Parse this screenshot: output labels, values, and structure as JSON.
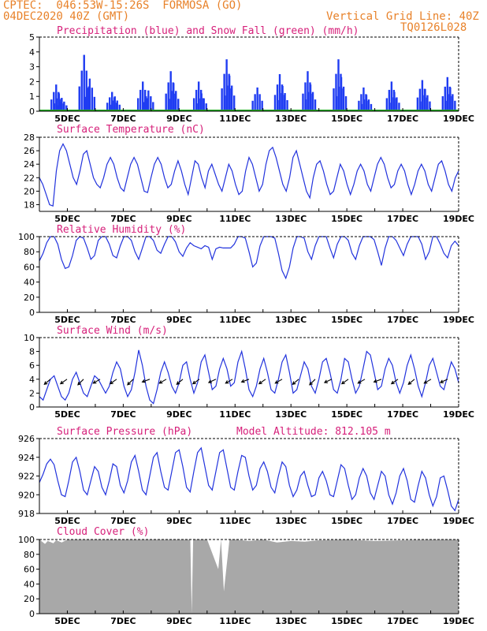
{
  "header": {
    "line1": "CPTEC:  046:53W-15:26S  FORMOSA (GO)",
    "line2": "04DEC2020 40Z (GMT)",
    "grid_note": "Vertical Grid Line: 40Z",
    "model_id": "TQ0126L028"
  },
  "colors": {
    "header": "#e8822a",
    "panel_title": "#d6207a",
    "series_line": "#2233dd",
    "precip_bar": "#1f3cf2",
    "snow": "#22aa22",
    "cloud_fill": "#a8a8a8"
  },
  "x_tick_labels": [
    "5DEC",
    "7DEC",
    "9DEC",
    "11DEC",
    "13DEC",
    "15DEC",
    "17DEC",
    "19DEC"
  ],
  "chart_data": [
    {
      "type": "bar",
      "title": "Precipitation (blue) and Snow Fall (green) (mm/h)",
      "x_range": [
        "04DEC",
        "19DEC"
      ],
      "ylim": [
        0,
        5
      ],
      "yticks": [
        0,
        1,
        2,
        3,
        4,
        5
      ],
      "series": [
        {
          "name": "Precipitation",
          "days": [
            4.6,
            4.7,
            4.8,
            5.6,
            5.8,
            6.6,
            6.7,
            7.7,
            7.9,
            8.7,
            8.8,
            9.7,
            9.8,
            10.7,
            10.8,
            11.8,
            12.6,
            12.7,
            13.6,
            13.7,
            14.7,
            14.8,
            15.6,
            15.7,
            16.6,
            16.7,
            17.7,
            17.8,
            18.6,
            18.7
          ],
          "values": [
            1.8,
            1.2,
            0.9,
            3.8,
            2.2,
            1.3,
            1.0,
            2.0,
            1.4,
            2.7,
            1.9,
            2.0,
            1.2,
            3.5,
            2.4,
            1.6,
            2.5,
            1.7,
            2.7,
            1.8,
            3.5,
            2.3,
            1.6,
            1.1,
            2.0,
            1.3,
            2.1,
            1.5,
            2.3,
            1.6
          ]
        },
        {
          "name": "Snow Fall",
          "days": [
            4.0,
            19.0
          ],
          "values": [
            0,
            0
          ]
        }
      ]
    },
    {
      "type": "line",
      "title": "Surface Temperature (nC)",
      "ylim": [
        17,
        28
      ],
      "yticks": [
        18,
        20,
        22,
        24,
        26,
        28
      ],
      "series": [
        {
          "values": [
            22,
            21,
            19.5,
            18,
            17.8,
            23,
            26,
            27,
            26,
            24,
            22,
            21,
            23,
            25.5,
            26,
            24,
            22,
            21,
            20.5,
            22,
            24,
            25,
            24,
            22,
            20.5,
            20,
            22,
            24,
            25,
            24,
            22,
            20,
            19.8,
            22,
            24,
            25,
            24,
            22,
            20.5,
            21,
            23,
            24.5,
            23,
            21,
            19.5,
            22,
            24.5,
            24,
            22,
            20.5,
            23,
            24,
            22.5,
            21,
            20,
            22,
            24,
            23,
            21,
            19.5,
            20,
            23,
            25,
            24,
            22,
            20,
            21,
            24,
            26,
            26.5,
            25,
            23,
            21,
            20,
            22,
            25,
            26,
            24,
            22,
            20,
            19,
            22,
            24,
            24.5,
            23,
            21,
            19.5,
            20,
            22,
            24,
            23,
            21,
            19.5,
            21,
            23,
            24,
            23,
            21,
            20,
            22,
            24,
            25,
            24,
            22,
            20.5,
            21,
            23,
            24,
            23,
            21,
            19.5,
            21,
            23,
            24,
            23,
            21,
            20,
            22,
            24,
            24.5,
            23,
            21,
            20,
            22,
            23
          ]
        }
      ]
    },
    {
      "type": "line",
      "title": "Relative Humidity (%)",
      "ylim": [
        0,
        100
      ],
      "yticks": [
        0,
        20,
        40,
        60,
        80,
        100
      ],
      "series": [
        {
          "values": [
            68,
            78,
            92,
            100,
            100,
            90,
            70,
            58,
            60,
            75,
            95,
            100,
            98,
            85,
            70,
            75,
            95,
            100,
            100,
            90,
            75,
            72,
            88,
            100,
            100,
            95,
            80,
            70,
            85,
            100,
            100,
            95,
            82,
            78,
            90,
            100,
            100,
            93,
            80,
            74,
            85,
            92,
            88,
            86,
            84,
            88,
            86,
            70,
            84,
            86,
            85,
            85,
            85,
            90,
            100,
            100,
            98,
            80,
            60,
            65,
            88,
            100,
            100,
            100,
            98,
            78,
            55,
            45,
            60,
            85,
            100,
            100,
            98,
            80,
            70,
            88,
            100,
            100,
            100,
            85,
            72,
            90,
            100,
            100,
            95,
            78,
            70,
            88,
            100,
            100,
            100,
            96,
            80,
            62,
            85,
            100,
            100,
            95,
            85,
            75,
            90,
            100,
            100,
            100,
            90,
            70,
            80,
            100,
            100,
            90,
            78,
            72,
            88,
            94,
            88
          ]
        }
      ]
    },
    {
      "type": "line",
      "title": "Surface Wind (m/s)",
      "ylim": [
        0,
        10
      ],
      "yticks": [
        0,
        2,
        4,
        6,
        8,
        10
      ],
      "series": [
        {
          "values": [
            1.5,
            1.0,
            2.5,
            4.0,
            4.5,
            3.0,
            1.5,
            1.0,
            2.0,
            4.0,
            5.0,
            3.5,
            2.0,
            1.5,
            3.0,
            4.5,
            4.0,
            3.0,
            2.0,
            3.0,
            5.0,
            6.5,
            5.5,
            3.0,
            1.5,
            2.5,
            5.0,
            8.2,
            6.0,
            3.0,
            1.0,
            0.5,
            2.5,
            5.0,
            6.5,
            5.0,
            3.0,
            2.0,
            3.5,
            6.0,
            6.5,
            4.0,
            2.0,
            3.5,
            6.5,
            7.5,
            5.0,
            2.5,
            3.0,
            5.5,
            7.0,
            5.5,
            3.0,
            3.5,
            6.5,
            8.0,
            5.5,
            2.5,
            1.5,
            3.0,
            5.5,
            7.0,
            5.0,
            2.5,
            2.0,
            4.0,
            6.5,
            7.5,
            5.0,
            2.0,
            2.5,
            4.5,
            6.5,
            5.5,
            3.0,
            2.0,
            4.0,
            6.5,
            7.0,
            5.0,
            2.5,
            2.0,
            4.0,
            7.0,
            6.5,
            4.0,
            2.0,
            3.0,
            5.5,
            8.0,
            7.5,
            5.0,
            2.5,
            3.0,
            5.5,
            7.0,
            6.0,
            3.5,
            2.0,
            3.5,
            6.0,
            7.5,
            5.5,
            3.0,
            1.5,
            3.5,
            6.0,
            7.0,
            5.0,
            3.0,
            2.5,
            4.5,
            6.5,
            5.5,
            3.5
          ]
        }
      ],
      "wind_arrow_angles_deg": [
        220,
        215,
        225,
        210,
        215,
        225,
        200,
        210,
        220,
        215,
        205,
        210,
        200,
        215,
        210,
        220,
        225,
        205,
        215,
        210,
        200,
        215,
        220,
        210,
        205
      ]
    },
    {
      "type": "line",
      "title": "Surface Pressure (hPa)",
      "annotation": "Model Altitude: 812.105 m",
      "ylim": [
        918,
        926
      ],
      "yticks": [
        918,
        920,
        922,
        924,
        926
      ],
      "series": [
        {
          "values": [
            921.3,
            922.2,
            923.3,
            923.8,
            923.2,
            921.5,
            920.0,
            919.8,
            921.5,
            923.5,
            924.0,
            922.5,
            920.5,
            920.0,
            921.5,
            923.0,
            922.5,
            920.8,
            920.0,
            921.5,
            923.3,
            923.0,
            921.0,
            920.2,
            921.5,
            923.5,
            924.2,
            922.5,
            920.5,
            920.0,
            922.0,
            924.0,
            924.5,
            922.5,
            920.8,
            920.5,
            922.5,
            924.5,
            924.8,
            923.0,
            920.8,
            920.3,
            922.5,
            924.5,
            925.0,
            923.0,
            921.0,
            920.5,
            922.5,
            924.5,
            924.8,
            922.8,
            920.8,
            920.5,
            922.5,
            924.2,
            924.0,
            922.0,
            920.5,
            921.0,
            922.8,
            923.5,
            922.5,
            920.8,
            920.2,
            922.0,
            923.5,
            923.0,
            921.0,
            919.8,
            920.5,
            922.0,
            922.5,
            921.0,
            919.8,
            920.0,
            921.8,
            922.5,
            921.5,
            920.0,
            919.8,
            921.5,
            923.2,
            922.8,
            921.0,
            919.5,
            920.0,
            921.8,
            922.8,
            922.0,
            920.2,
            919.5,
            921.0,
            922.5,
            922.0,
            920.0,
            919.0,
            920.2,
            922.0,
            922.8,
            921.5,
            919.5,
            919.2,
            921.0,
            922.5,
            921.8,
            920.0,
            918.8,
            919.8,
            921.8,
            922.0,
            920.5,
            918.8,
            918.3,
            919.5
          ]
        }
      ]
    },
    {
      "type": "area",
      "title": "Cloud Cover (%)",
      "ylim": [
        0,
        100
      ],
      "yticks": [
        0,
        20,
        40,
        60,
        80,
        100
      ],
      "series": [
        {
          "days": [
            4.0,
            4.2,
            4.3,
            4.5,
            4.6,
            4.8,
            5.0,
            6.0,
            7.0,
            8.0,
            9.0,
            9.4,
            9.45,
            9.5,
            10.0,
            10.4,
            10.5,
            10.6,
            10.8,
            11.0,
            11.5,
            12.0,
            12.5,
            13.0,
            13.5,
            14.0,
            15.0,
            16.0,
            17.0,
            18.0,
            19.0
          ],
          "values": [
            100,
            94,
            98,
            95,
            99,
            96,
            100,
            100,
            100,
            100,
            100,
            100,
            0,
            100,
            100,
            60,
            100,
            30,
            100,
            100,
            98,
            100,
            96,
            98,
            97,
            99,
            100,
            98,
            99,
            100,
            100
          ]
        }
      ]
    }
  ]
}
